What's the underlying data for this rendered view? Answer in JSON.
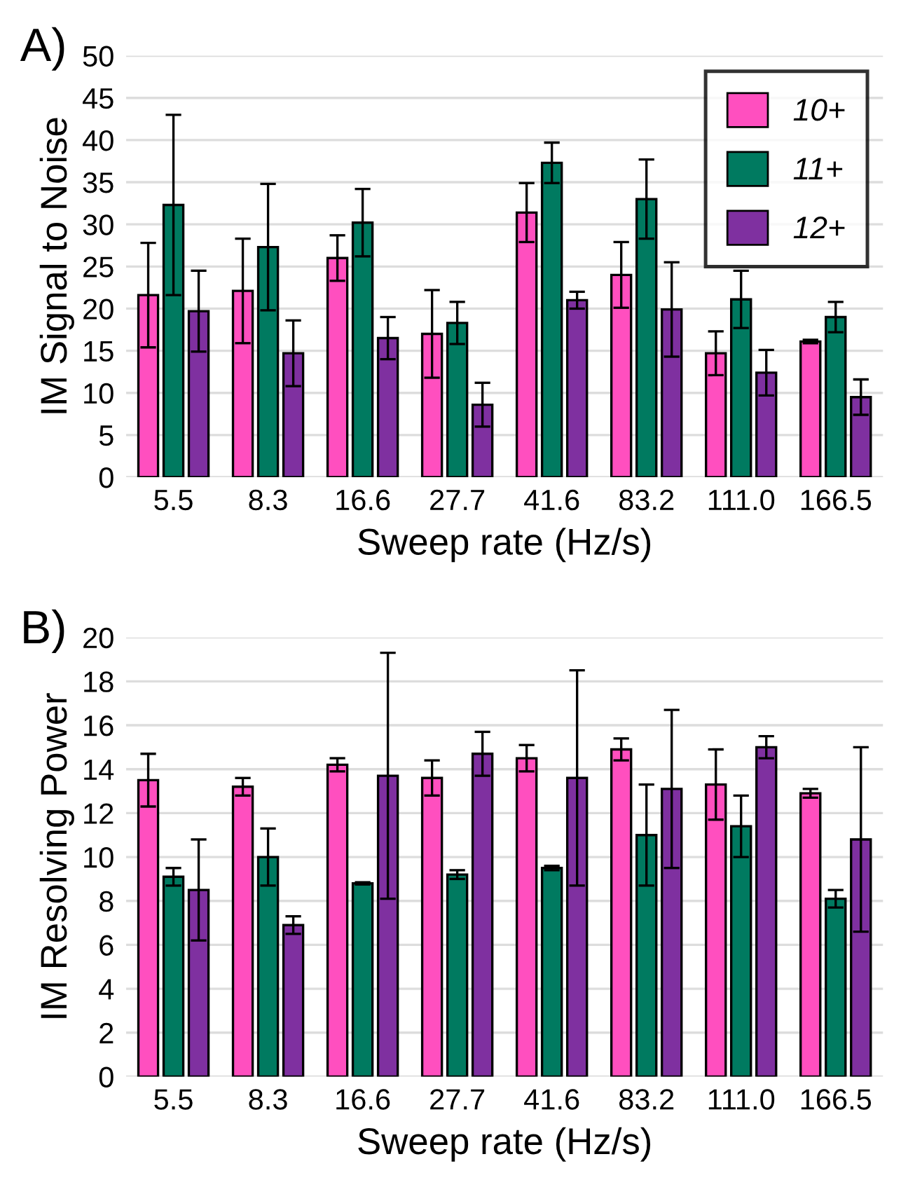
{
  "chart_data": [
    {
      "type": "bar",
      "title": "A)",
      "xlabel": "Sweep rate (Hz/s)",
      "ylabel": "IM Signal to Noise",
      "categories": [
        "5.5",
        "8.3",
        "16.6",
        "27.7",
        "41.6",
        "83.2",
        "111.0",
        "166.5"
      ],
      "series": [
        {
          "name": "10+",
          "color": "#ff4fbf",
          "values": [
            21.6,
            22.1,
            26.0,
            17.0,
            31.4,
            24.0,
            14.7,
            16.1
          ],
          "errors": [
            6.2,
            6.2,
            2.7,
            5.2,
            3.5,
            3.9,
            2.6,
            0.2
          ]
        },
        {
          "name": "11+",
          "color": "#007a60",
          "values": [
            32.3,
            27.3,
            30.2,
            18.3,
            37.3,
            33.0,
            21.1,
            19.0
          ],
          "errors": [
            10.7,
            7.5,
            4.0,
            2.5,
            2.4,
            4.7,
            3.4,
            1.8
          ]
        },
        {
          "name": "12+",
          "color": "#7f30a0",
          "values": [
            19.7,
            14.7,
            16.5,
            8.6,
            21.0,
            19.9,
            12.4,
            9.5
          ],
          "errors": [
            4.8,
            3.9,
            2.5,
            2.6,
            1.0,
            5.6,
            2.7,
            2.1
          ]
        }
      ],
      "ylim": [
        0,
        50
      ],
      "yticks": [
        0,
        5,
        10,
        15,
        20,
        25,
        30,
        35,
        40,
        45,
        50
      ],
      "grid": "y",
      "legend": "top right"
    },
    {
      "type": "bar",
      "title": "B)",
      "xlabel": "Sweep rate (Hz/s)",
      "ylabel": "IM Resolving Power",
      "categories": [
        "5.5",
        "8.3",
        "16.6",
        "27.7",
        "41.6",
        "83.2",
        "111.0",
        "166.5"
      ],
      "series": [
        {
          "color": "#ff4fbf",
          "values": [
            13.5,
            13.2,
            14.2,
            13.6,
            14.5,
            14.9,
            13.3,
            12.9
          ],
          "errors": [
            1.2,
            0.4,
            0.3,
            0.8,
            0.6,
            0.5,
            1.6,
            0.2
          ]
        },
        {
          "color": "#007a60",
          "values": [
            9.1,
            10.0,
            8.8,
            9.2,
            9.5,
            11.0,
            11.4,
            8.1
          ],
          "errors": [
            0.4,
            1.3,
            0.05,
            0.2,
            0.1,
            2.3,
            1.4,
            0.4
          ]
        },
        {
          "color": "#7f30a0",
          "values": [
            8.5,
            6.9,
            13.7,
            14.7,
            13.6,
            13.1,
            15.0,
            10.8
          ],
          "errors": [
            2.3,
            0.4,
            5.6,
            1.0,
            4.9,
            3.6,
            0.5,
            4.2
          ]
        }
      ],
      "ylim": [
        0,
        20
      ],
      "yticks": [
        0,
        2,
        4,
        6,
        8,
        10,
        12,
        14,
        16,
        18,
        20
      ],
      "grid": "y",
      "legend": false
    }
  ]
}
